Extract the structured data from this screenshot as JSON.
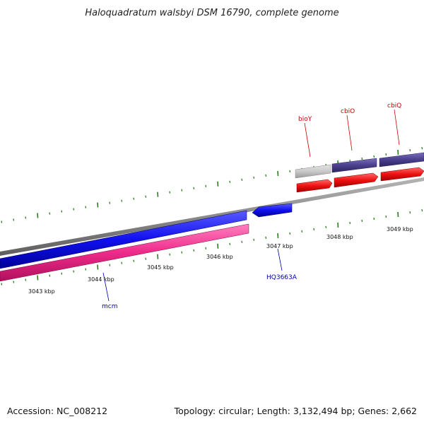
{
  "title": "Haloquadratum walsbyi DSM 16790, complete genome",
  "footer": {
    "accession": "Accession: NC_008212",
    "summary": "Topology: circular; Length: 3,132,494 bp; Genes: 2,662"
  },
  "colors": {
    "backbone": "#8a8a8a",
    "tick": "#2e7d1f",
    "forward_cds": "#ee1111",
    "reverse_cds": "#1010ee",
    "reverse_rna": "#ee2a8a",
    "cog_purple": "#4a3f8c",
    "cog_grey": "#c9c9c9",
    "label_red": "#cc0000",
    "label_blue": "#0000aa"
  },
  "axis": {
    "labels": [
      "3043 kbp",
      "3044 kbp",
      "3045 kbp",
      "3046 kbp",
      "3047 kbp",
      "3048 kbp",
      "3049 kbp"
    ]
  },
  "genes": [
    {
      "name": "mcm",
      "strand": "reverse",
      "color": "label_blue"
    },
    {
      "name": "HQ3663A",
      "strand": "reverse",
      "color": "label_blue"
    },
    {
      "name": "bioY",
      "strand": "forward",
      "color": "label_red"
    },
    {
      "name": "cbiO",
      "strand": "forward",
      "color": "label_red"
    },
    {
      "name": "cbiQ",
      "strand": "forward",
      "color": "label_red"
    }
  ]
}
